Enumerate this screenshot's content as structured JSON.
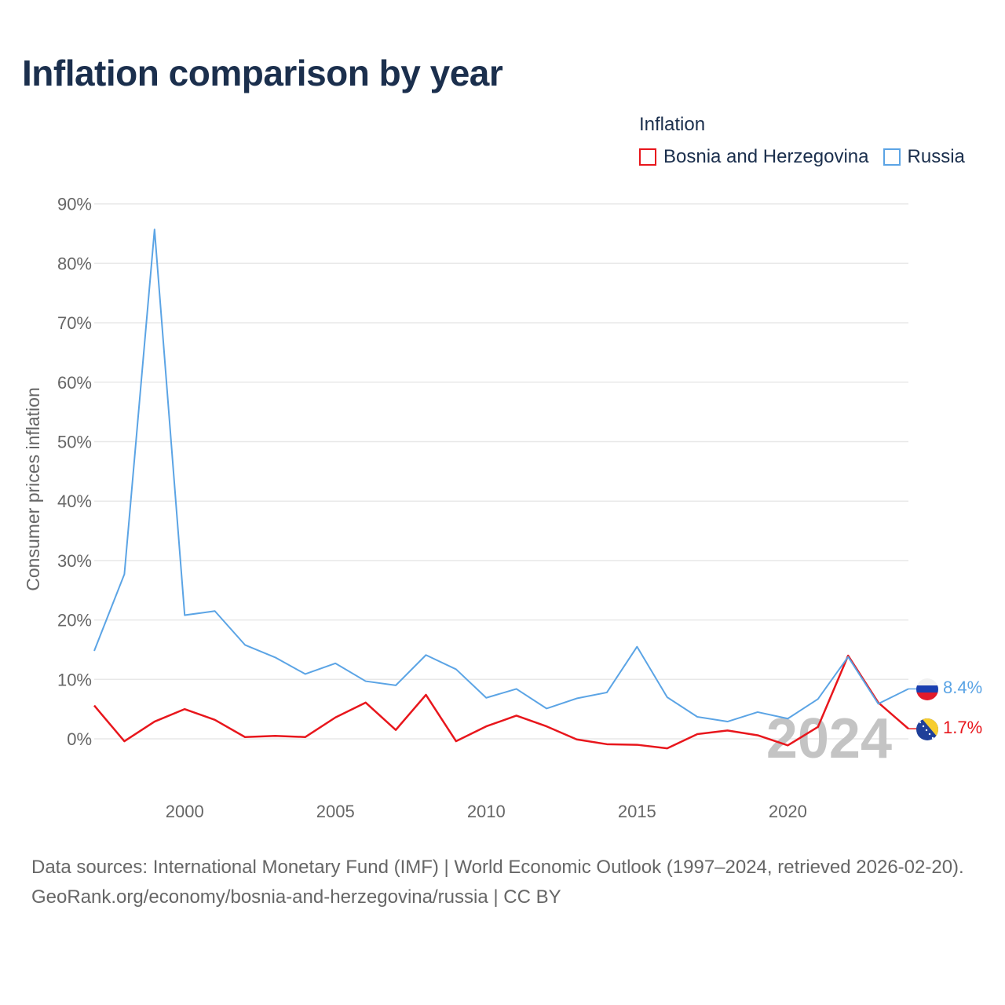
{
  "page": {
    "title": "Inflation comparison by year",
    "legend_title": "Inflation",
    "source_line": "Data sources: International Monetary Fund (IMF) | World Economic Outlook (1997–2024, retrieved 2026-02-20).",
    "credit_line": "GeoRank.org/economy/bosnia-and-herzegovina/russia | CC BY",
    "year_watermark": "2024"
  },
  "colors": {
    "bosnia": "#e8161c",
    "russia": "#5ba4e5",
    "grid": "#e8e8e8",
    "title": "#1b2f4d"
  },
  "chart_data": {
    "type": "line",
    "title": "Inflation comparison by year",
    "xlabel": "",
    "ylabel": "Consumer prices inflation",
    "x": [
      1997,
      1998,
      1999,
      2000,
      2001,
      2002,
      2003,
      2004,
      2005,
      2006,
      2007,
      2008,
      2009,
      2010,
      2011,
      2012,
      2013,
      2014,
      2015,
      2016,
      2017,
      2018,
      2019,
      2020,
      2021,
      2022,
      2023,
      2024
    ],
    "xticks": [
      2000,
      2005,
      2010,
      2015,
      2020
    ],
    "xlim": [
      1997,
      2024
    ],
    "ylim": [
      -9,
      90
    ],
    "yticks": [
      0,
      10,
      20,
      30,
      40,
      50,
      60,
      70,
      80,
      90
    ],
    "ytick_labels": [
      "0%",
      "10%",
      "20%",
      "30%",
      "40%",
      "50%",
      "60%",
      "70%",
      "80%",
      "90%"
    ],
    "legend_position": "top-right",
    "series": [
      {
        "name": "Bosnia and Herzegovina",
        "key": "bosnia",
        "values": [
          5.6,
          -0.4,
          2.9,
          5.0,
          3.2,
          0.3,
          0.5,
          0.3,
          3.6,
          6.1,
          1.5,
          7.4,
          -0.4,
          2.1,
          3.9,
          2.1,
          -0.1,
          -0.9,
          -1.0,
          -1.6,
          0.8,
          1.4,
          0.6,
          -1.1,
          2.0,
          14.0,
          6.1,
          1.7
        ],
        "end_label": "1.7%"
      },
      {
        "name": "Russia",
        "key": "russia",
        "values": [
          14.8,
          27.7,
          85.7,
          20.8,
          21.5,
          15.8,
          13.7,
          10.9,
          12.7,
          9.7,
          9.0,
          14.1,
          11.7,
          6.9,
          8.4,
          5.1,
          6.8,
          7.8,
          15.5,
          7.0,
          3.7,
          2.9,
          4.5,
          3.4,
          6.7,
          13.8,
          5.9,
          8.4
        ],
        "end_label": "8.4%"
      }
    ]
  }
}
